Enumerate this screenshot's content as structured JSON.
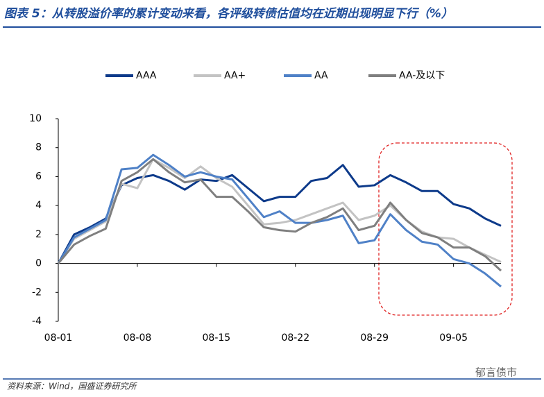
{
  "chart_data": {
    "type": "line",
    "title": "图表 5：从转股溢价率的累计变动来看，各评级转债估值均在近期出现明显下行（%）",
    "source": "资料来源：Wind，国盛证券研究所",
    "watermark": "郁言债市",
    "categories": [
      "08-01",
      null,
      null,
      null,
      null,
      "08-08",
      null,
      null,
      null,
      null,
      "08-15",
      null,
      null,
      null,
      null,
      "08-22",
      null,
      null,
      null,
      null,
      "08-29",
      null,
      null,
      null,
      null,
      "09-05",
      null,
      null,
      null
    ],
    "series": [
      {
        "name": "AAA",
        "color": "#0d3a8a",
        "values": [
          0,
          2.0,
          2.5,
          3.1,
          5.4,
          5.9,
          6.1,
          5.7,
          5.1,
          5.8,
          5.7,
          6.1,
          5.2,
          4.3,
          4.6,
          4.6,
          5.7,
          5.9,
          6.8,
          5.3,
          5.4,
          6.1,
          5.6,
          5.0,
          5.0,
          4.1,
          3.8,
          3.1,
          2.6
        ]
      },
      {
        "name": "AA+",
        "color": "#c3c3c3",
        "values": [
          0,
          1.7,
          2.3,
          2.9,
          5.5,
          5.2,
          7.2,
          6.6,
          5.9,
          6.7,
          5.9,
          5.3,
          4.0,
          2.7,
          2.8,
          3.0,
          3.4,
          3.8,
          4.2,
          3.0,
          3.3,
          4.0,
          3.0,
          2.2,
          1.8,
          1.7,
          1.1,
          0.6,
          0.1
        ]
      },
      {
        "name": "AA",
        "color": "#4f81c7",
        "values": [
          0,
          1.8,
          2.4,
          3.0,
          6.5,
          6.6,
          7.5,
          6.8,
          6.0,
          6.3,
          6.0,
          5.8,
          4.5,
          3.2,
          3.6,
          2.8,
          2.8,
          3.0,
          3.3,
          1.4,
          1.6,
          3.4,
          2.3,
          1.5,
          1.3,
          0.3,
          0.0,
          -0.7,
          -1.6
        ]
      },
      {
        "name": "AA-及以下",
        "color": "#7f7f7f",
        "values": [
          0,
          1.3,
          1.9,
          2.4,
          5.7,
          6.3,
          7.2,
          6.3,
          5.6,
          5.8,
          4.6,
          4.6,
          3.6,
          2.5,
          2.3,
          2.2,
          2.8,
          3.2,
          3.8,
          2.3,
          2.6,
          4.2,
          3.0,
          2.1,
          1.8,
          1.1,
          1.1,
          0.5,
          -0.5
        ]
      }
    ],
    "ylim": [
      -4,
      10
    ],
    "yticks": [
      -4,
      -2,
      0,
      2,
      4,
      6,
      8,
      10
    ],
    "grid": false,
    "legend": "top"
  }
}
